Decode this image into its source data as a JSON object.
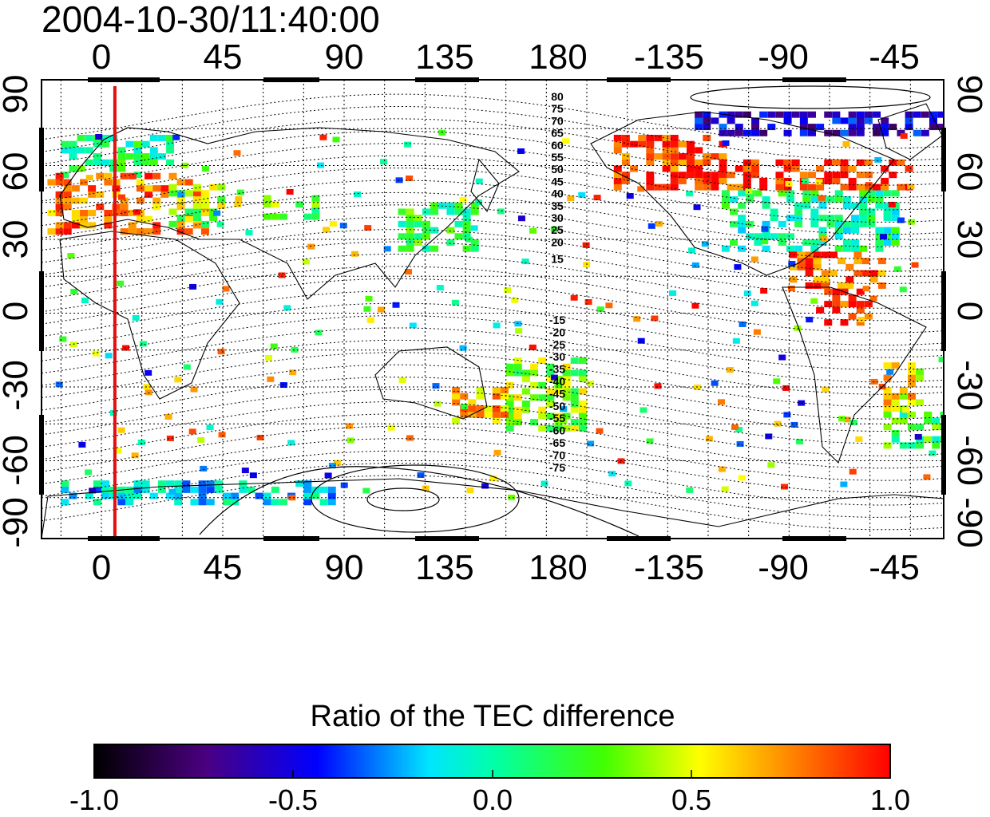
{
  "timestamp": "2004-10-30/11:40:00",
  "colorbar": {
    "title": "Ratio of the TEC difference",
    "ticks": [
      "-1.0",
      "-0.5",
      "0.0",
      "0.5",
      "1.0"
    ],
    "range": [
      -1.0,
      1.0
    ]
  },
  "axes": {
    "lon_labels": [
      "0",
      "45",
      "90",
      "135",
      "180",
      "-135",
      "-90",
      "-45"
    ],
    "lat_labels": [
      "90",
      "60",
      "30",
      "0",
      "-30",
      "-60",
      "-90"
    ]
  },
  "magnetic_latitude_labels": {
    "north": [
      "80",
      "75",
      "70",
      "65",
      "60",
      "55",
      "50",
      "45",
      "40",
      "35",
      "30",
      "25",
      "20",
      "15"
    ],
    "south": [
      "-15",
      "-20",
      "-25",
      "-30",
      "-35",
      "-40",
      "-45",
      "-50",
      "-55",
      "-60",
      "-65",
      "-70",
      "-75"
    ]
  },
  "terminator_longitude": 5,
  "colors": {
    "terminator": "#e01010",
    "frame": "#000000",
    "colormap": [
      "#000000",
      "#4a0080",
      "#0000ff",
      "#00ffff",
      "#00ff00",
      "#ffff00",
      "#ff8000",
      "#ff0000"
    ]
  },
  "tec_regions": [
    {
      "lon": [
        -15,
        25
      ],
      "lat": [
        55,
        72
      ],
      "value": 0.1
    },
    {
      "lon": [
        -20,
        40
      ],
      "lat": [
        32,
        55
      ],
      "value": 0.75
    },
    {
      "lon": [
        25,
        45
      ],
      "lat": [
        35,
        52
      ],
      "value": 0.35
    },
    {
      "lon": [
        60,
        80
      ],
      "lat": [
        38,
        48
      ],
      "value": 0.25
    },
    {
      "lon": [
        110,
        140
      ],
      "lat": [
        25,
        45
      ],
      "value": 0.15
    },
    {
      "lon": [
        150,
        180
      ],
      "lat": [
        -48,
        -20
      ],
      "value": 0.35
    },
    {
      "lon": [
        130,
        150
      ],
      "lat": [
        -45,
        -30
      ],
      "value": 0.65
    },
    {
      "lon": [
        -170,
        -130
      ],
      "lat": [
        50,
        72
      ],
      "value": 0.9
    },
    {
      "lon": [
        -130,
        -65
      ],
      "lat": [
        25,
        50
      ],
      "value": 0.05
    },
    {
      "lon": [
        -140,
        -60
      ],
      "lat": [
        50,
        62
      ],
      "value": 0.95
    },
    {
      "lon": [
        -105,
        -70
      ],
      "lat": [
        10,
        25
      ],
      "value": 0.85
    },
    {
      "lon": [
        -95,
        -75
      ],
      "lat": [
        -5,
        10
      ],
      "value": 0.95
    },
    {
      "lon": [
        -70,
        -55
      ],
      "lat": [
        -40,
        -20
      ],
      "value": 0.55
    },
    {
      "lon": [
        -70,
        -45
      ],
      "lat": [
        -55,
        -40
      ],
      "value": 0.15
    },
    {
      "lon": [
        -140,
        -40
      ],
      "lat": [
        72,
        82
      ],
      "value": -0.55
    },
    {
      "lon": [
        -15,
        85
      ],
      "lat": [
        -78,
        -68
      ],
      "value": -0.15
    }
  ]
}
